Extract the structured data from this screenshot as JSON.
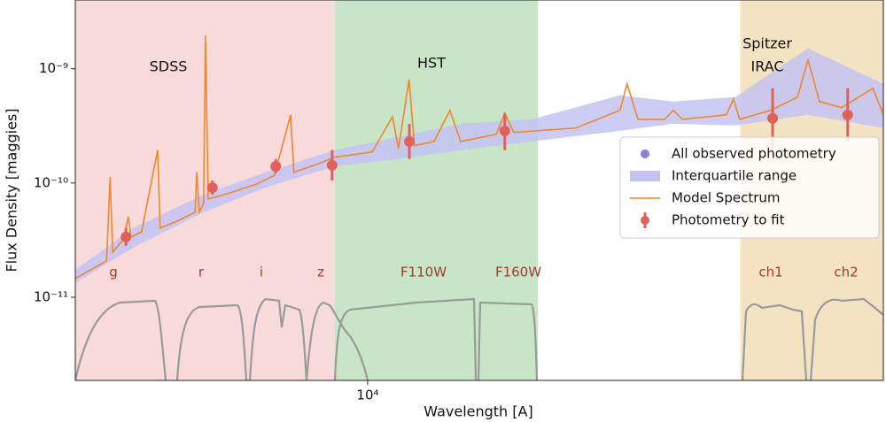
{
  "chart_data": {
    "type": "sed",
    "x_label": "Wavelength [A]",
    "y_label": "Flux Density [maggies]",
    "xscale": "log",
    "yscale": "log",
    "xlim": [
      4090,
      48400
    ],
    "ylim": [
      1.87e-12,
      4e-09
    ],
    "xticks": [
      {
        "value": 10000,
        "label": "10⁴"
      }
    ],
    "yticks": [
      {
        "value": 1e-11,
        "label": "10⁻¹¹"
      },
      {
        "value": 1e-10,
        "label": "10⁻¹⁰"
      },
      {
        "value": 1e-09,
        "label": "10⁻⁹"
      }
    ],
    "regions": [
      {
        "name": [
          "SDSS"
        ],
        "xlim": [
          4090,
          9040
        ],
        "color": "#f9dada"
      },
      {
        "name": [
          "HST"
        ],
        "xlim": [
          9040,
          16830
        ],
        "color": "#c8e5c8"
      },
      {
        "name": [
          "Spitzer",
          "IRAC"
        ],
        "xlim": [
          31260,
          48400
        ],
        "color": "#f4e3c3"
      }
    ],
    "filters": {
      "labels": [
        "g",
        "r",
        "i",
        "z",
        "F110W",
        "F160W",
        "ch1",
        "ch2"
      ],
      "color": "#a33a2e"
    },
    "legend": "right",
    "series": [
      {
        "name": "All observed photometry",
        "kind": "scatter",
        "color": "#8a80d8",
        "x": [
          4775,
          6220,
          7550,
          8970,
          11360,
          15210,
          34500,
          43400
        ],
        "values": [
          3.37e-11,
          9.1e-11,
          1.4e-10,
          1.43e-10,
          2.31e-10,
          2.86e-10,
          3.68e-10,
          3.95e-10
        ]
      },
      {
        "name": "Interquartile range",
        "kind": "band",
        "color": "#c3c3f3",
        "x": [
          4090,
          4880,
          6055,
          7320,
          9040,
          10990,
          13290,
          16500,
          21630,
          25470,
          30760,
          38440,
          48410
        ],
        "low": [
          1.33e-11,
          2.72e-11,
          5.55e-11,
          9.14e-11,
          1.4e-10,
          1.62e-10,
          1.94e-10,
          2.31e-10,
          2.86e-10,
          3.3e-10,
          3.19e-10,
          3.95e-10,
          3.03e-10
        ],
        "high": [
          1.74e-11,
          4.03e-11,
          7.93e-11,
          1.24e-10,
          1.94e-10,
          2.53e-10,
          3.3e-10,
          3.61e-10,
          5.85e-10,
          5.17e-10,
          5.65e-10,
          1.51e-09,
          7.38e-10
        ]
      },
      {
        "name": "Model Spectrum",
        "kind": "line",
        "color": "#f0862e",
        "x": [
          4090,
          4500,
          4550,
          4585,
          4745,
          4810,
          4850,
          5010,
          5260,
          5300,
          5590,
          5900,
          5930,
          5975,
          6055,
          6090,
          6140,
          6570,
          7130,
          7520,
          7900,
          7980,
          8610,
          9040,
          10140,
          10790,
          10990,
          11350,
          11540,
          12250,
          12860,
          13290,
          14820,
          15210,
          15630,
          18890,
          21630,
          22110,
          22850,
          24790,
          25470,
          26170,
          29950,
          30610,
          31190,
          34290,
          37220,
          38440,
          39810,
          42590,
          46880,
          48410
        ],
        "values": [
          1.46e-11,
          2.08e-11,
          1.13e-10,
          2.48e-11,
          3.25e-11,
          5.07e-11,
          3.37e-11,
          3.75e-11,
          1.94e-10,
          4.03e-11,
          4.65e-11,
          5.55e-11,
          1.24e-10,
          5.55e-11,
          6.64e-11,
          1.97e-09,
          7.25e-11,
          8.22e-11,
          9.82e-11,
          1.17e-10,
          3.95e-10,
          1.24e-10,
          1.48e-10,
          1.68e-10,
          1.87e-10,
          3.81e-10,
          2e-10,
          8.07e-10,
          2.12e-10,
          2.31e-10,
          4.33e-10,
          2.31e-10,
          2.67e-10,
          4.09e-10,
          2.77e-10,
          3.03e-10,
          4.33e-10,
          7.38e-10,
          3.61e-10,
          3.61e-10,
          4.33e-10,
          3.61e-10,
          3.95e-10,
          5.44e-10,
          3.61e-10,
          4.33e-10,
          5.65e-10,
          1.2e-09,
          5.17e-10,
          4.56e-10,
          6.75e-10,
          3.95e-10
        ]
      },
      {
        "name": "Photometry to fit",
        "kind": "errorbar",
        "color": "#e0605a",
        "x": [
          4775,
          6220,
          7550,
          8970,
          11360,
          15210,
          34500,
          43400
        ],
        "values": [
          3.37e-11,
          9.1e-11,
          1.4e-10,
          1.43e-10,
          2.31e-10,
          2.86e-10,
          3.68e-10,
          3.95e-10
        ],
        "low": [
          2.82e-11,
          7.93e-11,
          1.22e-10,
          1.05e-10,
          1.62e-10,
          1.94e-10,
          1.94e-10,
          2.31e-10
        ],
        "high": [
          4.03e-11,
          1.05e-10,
          1.62e-10,
          1.94e-10,
          3.3e-10,
          4.09e-10,
          6.75e-10,
          6.75e-10
        ]
      }
    ]
  }
}
